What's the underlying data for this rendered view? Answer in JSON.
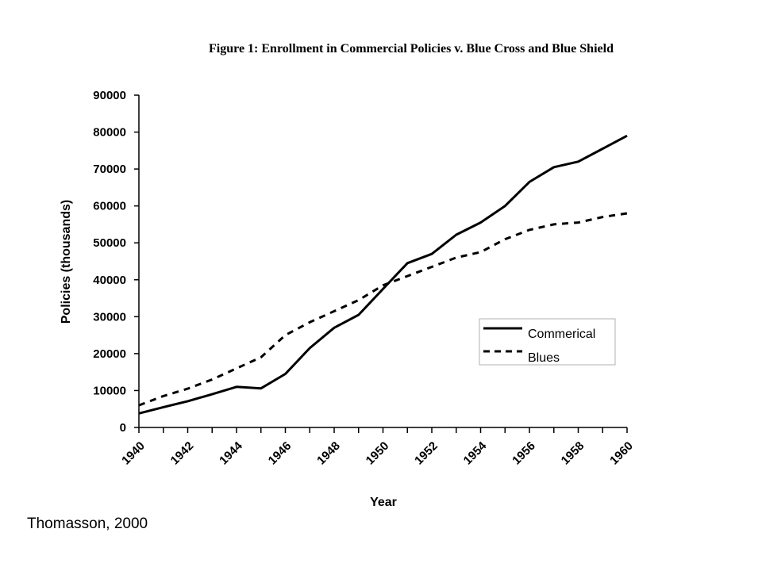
{
  "chart_data": {
    "type": "line",
    "title": "Figure 1: Enrollment in Commercial Policies v. Blue Cross and Blue Shield",
    "xlabel": "Year",
    "ylabel": "Policies (thousands)",
    "ylim": [
      0,
      90000
    ],
    "xlim": [
      1940,
      1960
    ],
    "y_ticks": [
      "0",
      "10000",
      "20000",
      "30000",
      "40000",
      "50000",
      "60000",
      "70000",
      "80000",
      "90000"
    ],
    "x_tick_labels": [
      "1940",
      "1942",
      "1944",
      "1946",
      "1948",
      "1950",
      "1952",
      "1954",
      "1956",
      "1958",
      "1960"
    ],
    "x": [
      1940,
      1941,
      1942,
      1943,
      1944,
      1945,
      1946,
      1947,
      1948,
      1949,
      1950,
      1951,
      1952,
      1953,
      1954,
      1955,
      1956,
      1957,
      1958,
      1959,
      1960
    ],
    "series": [
      {
        "name": "Commerical",
        "style": "solid",
        "values": [
          3800,
          5500,
          7100,
          9000,
          11000,
          10600,
          14500,
          21500,
          27000,
          30500,
          37500,
          44500,
          47000,
          52200,
          55500,
          60000,
          66500,
          70500,
          72000,
          75500,
          79000
        ]
      },
      {
        "name": "Blues",
        "style": "dashed",
        "values": [
          6000,
          8500,
          10500,
          13000,
          16000,
          19000,
          25000,
          28500,
          31500,
          34500,
          38500,
          41000,
          43500,
          46000,
          47500,
          51000,
          53500,
          55000,
          55500,
          57000,
          58000
        ]
      }
    ],
    "legend_position": "right",
    "grid": false,
    "color": "#000000"
  },
  "source_note": "Thomasson, 2000"
}
